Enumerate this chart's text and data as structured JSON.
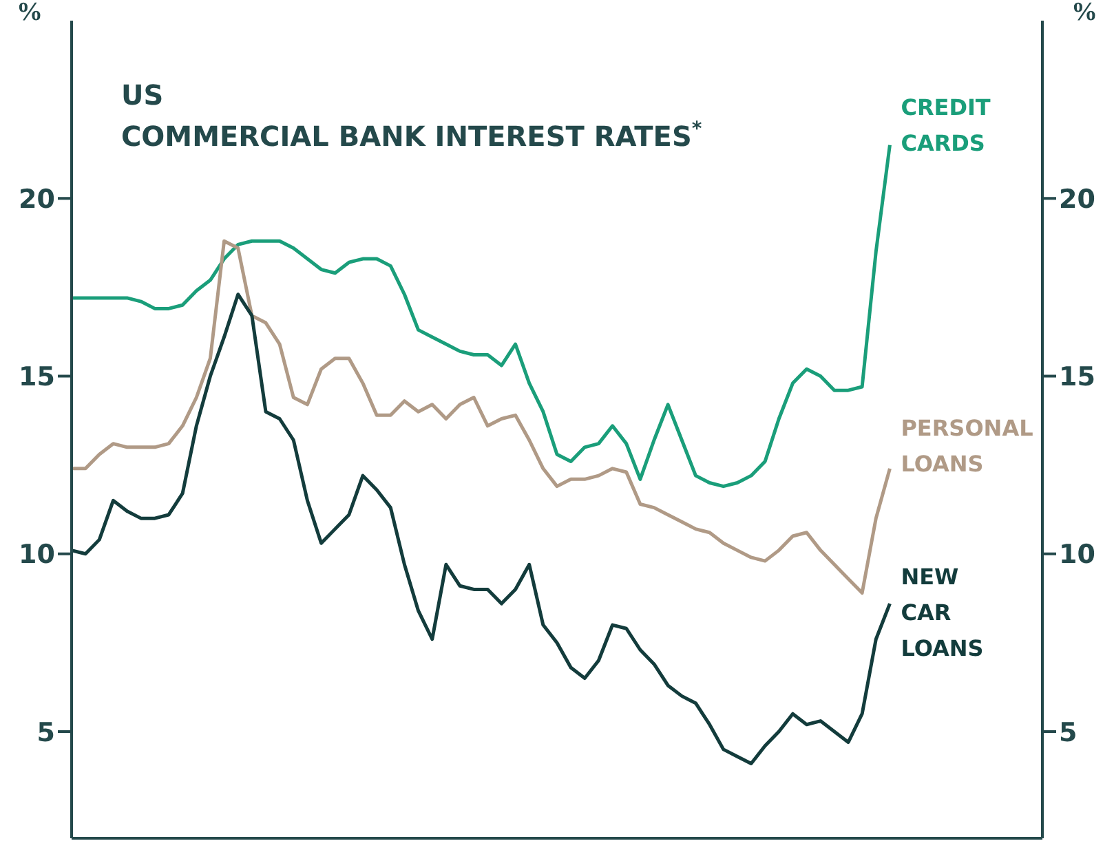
{
  "chart_data": {
    "type": "line",
    "title": "US",
    "subtitle": "COMMERCIAL BANK INTEREST RATES$^{*}$",
    "ylabel": "%",
    "y2label": "%",
    "categories": [
      null,
      null,
      null,
      null,
      null,
      null,
      null,
      null,
      null,
      null,
      null,
      null,
      null,
      null,
      null,
      null,
      null,
      null,
      null,
      null,
      null,
      null,
      null,
      null,
      null,
      null,
      null,
      null,
      null,
      null,
      null,
      null,
      null,
      null,
      null,
      null,
      null,
      null,
      null,
      null,
      null,
      null,
      null,
      null,
      null,
      null,
      null,
      null,
      null,
      null,
      null,
      null,
      null,
      null,
      null,
      null,
      null,
      null,
      null,
      null,
      null,
      null,
      null,
      null,
      null,
      null,
      null,
      null,
      null,
      null,
      null
    ],
    "ylim": [
      2,
      25
    ],
    "yticks": [
      5,
      10,
      15,
      20
    ],
    "y2lim": [
      2,
      25
    ],
    "y2ticks": [
      5,
      10,
      15,
      20
    ],
    "marker": "none",
    "line_style": "solid",
    "series": [
      {
        "name": "CREDIT CARDS",
        "color": "#1a9e7a",
        "values": [
          17.2,
          17.2,
          17.2,
          17.2,
          17.2,
          17.1,
          16.9,
          16.9,
          17.0,
          17.4,
          17.7,
          18.3,
          18.7,
          18.8,
          18.8,
          18.8,
          18.6,
          18.3,
          18.0,
          17.9,
          18.2,
          18.3,
          18.3,
          18.1,
          17.3,
          16.3,
          16.1,
          15.9,
          15.7,
          15.6,
          15.6,
          15.3,
          15.9,
          14.8,
          14.0,
          12.8,
          12.6,
          13.0,
          13.1,
          13.6,
          13.1,
          12.1,
          13.2,
          14.2,
          13.2,
          12.2,
          12.0,
          11.9,
          12.0,
          12.2,
          12.6,
          13.8,
          14.8,
          15.2,
          15.0,
          14.6,
          14.6,
          14.7,
          18.5,
          21.5,
          null,
          null,
          null,
          null,
          null,
          null,
          null,
          null,
          null,
          null,
          null
        ]
      },
      {
        "name": "PERSONAL LOANS",
        "color": "#b09a86",
        "values": [
          12.4,
          12.4,
          12.8,
          13.1,
          13.0,
          13.0,
          13.0,
          13.1,
          13.6,
          14.4,
          15.5,
          18.8,
          18.6,
          16.7,
          16.5,
          15.9,
          14.4,
          14.2,
          15.2,
          15.5,
          15.5,
          14.8,
          13.9,
          13.9,
          14.3,
          14.0,
          14.2,
          13.8,
          14.2,
          14.4,
          13.6,
          13.8,
          13.9,
          13.2,
          12.4,
          11.9,
          12.1,
          12.1,
          12.2,
          12.4,
          12.3,
          11.4,
          11.3,
          11.1,
          10.9,
          10.7,
          10.6,
          10.3,
          10.1,
          9.9,
          9.8,
          10.1,
          10.5,
          10.6,
          10.1,
          9.7,
          9.3,
          8.9,
          11.0,
          12.4,
          null,
          null,
          null,
          null,
          null,
          null,
          null,
          null,
          null,
          null,
          null
        ]
      },
      {
        "name": "NEW CAR LOANS",
        "color": "#133c3c",
        "values": [
          10.1,
          10.0,
          10.4,
          11.5,
          11.2,
          11.0,
          11.0,
          11.1,
          11.7,
          13.6,
          15.0,
          16.1,
          17.3,
          16.7,
          14.0,
          13.8,
          13.2,
          11.5,
          10.3,
          10.7,
          11.1,
          12.2,
          11.8,
          11.3,
          9.7,
          8.4,
          7.6,
          9.7,
          9.1,
          9.0,
          9.0,
          8.6,
          9.0,
          9.7,
          8.0,
          7.5,
          6.8,
          6.5,
          7.0,
          8.0,
          7.9,
          7.3,
          6.9,
          6.3,
          6.0,
          5.8,
          5.2,
          4.5,
          4.3,
          4.1,
          4.6,
          5.0,
          5.5,
          5.2,
          5.3,
          5.0,
          4.7,
          5.5,
          7.6,
          8.6,
          null,
          null,
          null,
          null,
          null,
          null,
          null,
          null,
          null,
          null,
          null
        ]
      }
    ]
  }
}
